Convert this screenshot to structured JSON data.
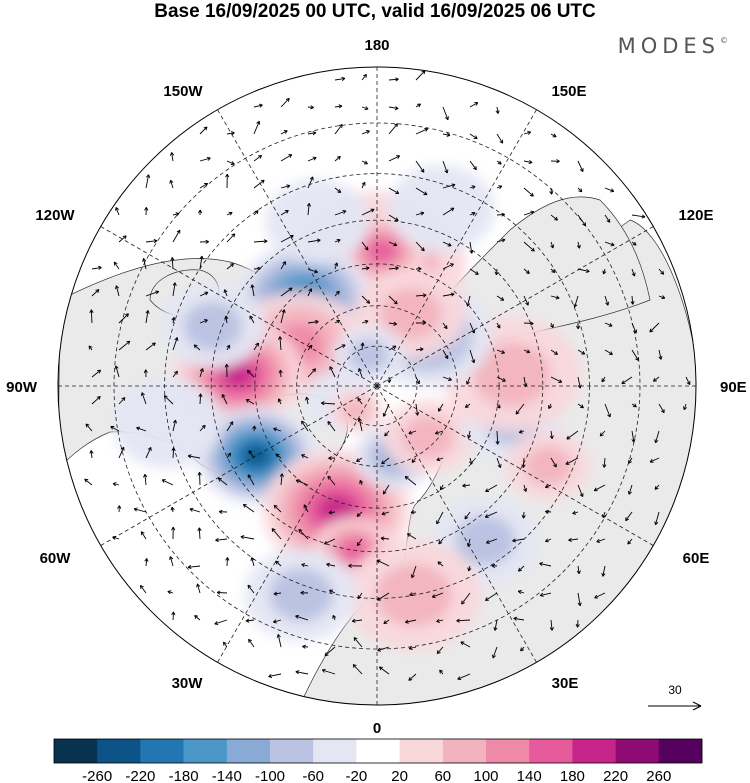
{
  "title": "Base 16/09/2025 00 UTC, valid 16/09/2025 06 UTC",
  "brand": {
    "name": "MODES",
    "mark": "©"
  },
  "longitude_labels": {
    "top": "180",
    "bottom": "0",
    "left": "90W",
    "right": "90E",
    "upper_left_150": "150W",
    "upper_right_150": "150E",
    "upper_left_120": "120W",
    "upper_right_120": "120E",
    "lower_left_60": "60W",
    "lower_right_60": "60E",
    "lower_left_30": "30W",
    "lower_right_30": "30E"
  },
  "reference_vector": {
    "label": "30"
  },
  "colorbar": {
    "ticks": [
      "-260",
      "-220",
      "-180",
      "-140",
      "-100",
      "-60",
      "-20",
      "20",
      "60",
      "100",
      "140",
      "180",
      "220",
      "260"
    ],
    "colors": [
      "#08334f",
      "#0c5487",
      "#2276b2",
      "#4a97c8",
      "#8aaad6",
      "#b9c2e1",
      "#e4e6f3",
      "#ffffff",
      "#f9d8dc",
      "#f3b3be",
      "#ee8aa8",
      "#e65b9c",
      "#c72589",
      "#8e0b73",
      "#55005e"
    ]
  },
  "anomalies": [
    {
      "lon": 180,
      "colat": 30,
      "r": 18,
      "v": 110
    },
    {
      "lon": 178,
      "colat": 33,
      "r": 9,
      "v": 150
    },
    {
      "lon": -140,
      "colat": 28,
      "r": 14,
      "v": -200
    },
    {
      "lon": -118,
      "colat": 22,
      "r": 14,
      "v": 110
    },
    {
      "lon": -95,
      "colat": 34,
      "r": 13,
      "v": 180
    },
    {
      "lon": -60,
      "colat": 34,
      "r": 12,
      "v": -230
    },
    {
      "lon": -18,
      "colat": 32,
      "r": 15,
      "v": 200
    },
    {
      "lon": -8,
      "colat": 40,
      "r": 8,
      "v": 160
    },
    {
      "lon": 15,
      "colat": 18,
      "r": 9,
      "v": -110
    },
    {
      "lon": 45,
      "colat": 18,
      "r": 10,
      "v": 90
    },
    {
      "lon": 75,
      "colat": 34,
      "r": 10,
      "v": -60
    },
    {
      "lon": 95,
      "colat": 33,
      "r": 14,
      "v": 80
    },
    {
      "lon": 135,
      "colat": 18,
      "r": 14,
      "v": -100
    },
    {
      "lon": 155,
      "colat": 20,
      "r": 12,
      "v": 90
    },
    {
      "lon": -165,
      "colat": 8,
      "r": 8,
      "v": -60
    },
    {
      "lon": -70,
      "colat": 10,
      "r": 8,
      "v": -40
    },
    {
      "lon": -40,
      "colat": 8,
      "r": 6,
      "v": 60
    },
    {
      "lon": -110,
      "colat": 42,
      "r": 10,
      "v": -60
    },
    {
      "lon": 35,
      "colat": 45,
      "r": 10,
      "v": -60
    },
    {
      "lon": 65,
      "colat": 45,
      "r": 8,
      "v": 70
    },
    {
      "lon": 10,
      "colat": 50,
      "r": 12,
      "v": 60
    },
    {
      "lon": -20,
      "colat": 52,
      "r": 10,
      "v": -60
    },
    {
      "lon": 160,
      "colat": 45,
      "r": 10,
      "v": -40
    },
    {
      "lon": -160,
      "colat": 42,
      "r": 10,
      "v": -40
    },
    {
      "lon": -80,
      "colat": 50,
      "r": 10,
      "v": -40
    }
  ]
}
